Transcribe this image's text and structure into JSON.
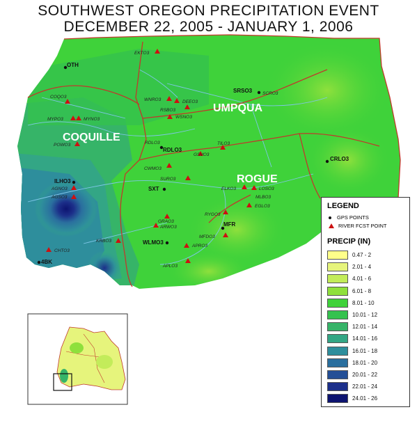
{
  "title_line1": "SOUTHWEST OREGON PRECIPITATION EVENT",
  "title_line2": "DECEMBER 22, 2005 - JANUARY 1, 2006",
  "basins": [
    {
      "name": "UMPQUA"
    },
    {
      "name": "COQUILLE"
    },
    {
      "name": "ROGUE"
    }
  ],
  "gps_points": [
    "OTH",
    "SRSO3",
    "RDLO3",
    "CRLO3",
    "ILHO3",
    "SXT",
    "MFR",
    "WLMO3",
    "4BK"
  ],
  "river_points": [
    "EKTO3",
    "COQO3",
    "MYPO3",
    "MYNO3",
    "POWO3",
    "WNRO3",
    "DEEO3",
    "RSBO3",
    "WSNO3",
    "SCRO3",
    "TILO3",
    "GSVO3",
    "RDLO3",
    "CWMO3",
    "SURO3",
    "AGNO3",
    "AGSO3",
    "ELKO3",
    "LOSO3",
    "MLBO3",
    "EGLO3",
    "RYGO3",
    "GRAO3",
    "ARWO3",
    "MFDO3",
    "KRBO3",
    "APRO3",
    "CHTO3",
    "APLO3"
  ],
  "legend": {
    "title": "LEGEND",
    "gps_label": "GPS POINTS",
    "river_label": "RIVER FCST POINT",
    "precip_title": "PRECIP (IN)",
    "classes": [
      {
        "label": "0.47 - 2",
        "color": "#ffff8a"
      },
      {
        "label": "2.01 - 4",
        "color": "#e6f47c"
      },
      {
        "label": "4.01 - 6",
        "color": "#c3ec5a"
      },
      {
        "label": "6.01 - 8",
        "color": "#8fe03c"
      },
      {
        "label": "8.01 - 10",
        "color": "#3fd23a"
      },
      {
        "label": "10.01 - 12",
        "color": "#35c24e"
      },
      {
        "label": "12.01 - 14",
        "color": "#36b468"
      },
      {
        "label": "14.01 - 16",
        "color": "#33a685"
      },
      {
        "label": "16.01 - 18",
        "color": "#2e8e9c"
      },
      {
        "label": "18.01 - 20",
        "color": "#2a6f9e"
      },
      {
        "label": "20.01 - 22",
        "color": "#244f96"
      },
      {
        "label": "22.01 - 24",
        "color": "#1c2f8a"
      },
      {
        "label": "24.01 - 26",
        "color": "#0d1470"
      }
    ]
  },
  "colors": {
    "river_marker": "#cc1111",
    "basin_boundary": "#c0392b",
    "river": "#7fc6e8"
  }
}
